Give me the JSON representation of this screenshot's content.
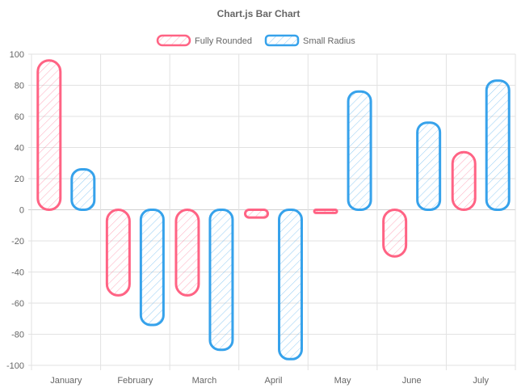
{
  "chart_data": {
    "type": "bar",
    "title": "Chart.js Bar Chart",
    "categories": [
      "January",
      "February",
      "March",
      "April",
      "May",
      "June",
      "July"
    ],
    "ylim": [
      -100,
      100
    ],
    "yticks": [
      100,
      80,
      60,
      40,
      20,
      0,
      -20,
      -40,
      -60,
      -80,
      -100
    ],
    "grid": true,
    "legend_position": "top",
    "style": "hand-drawn hatched",
    "series": [
      {
        "name": "Fully Rounded",
        "color": "#ff6384",
        "values": [
          96,
          -55,
          -55,
          -5,
          -2,
          -30,
          37
        ]
      },
      {
        "name": "Small Radius",
        "color": "#36a2eb",
        "values": [
          26,
          -74,
          -90,
          -96,
          76,
          56,
          83
        ]
      }
    ]
  }
}
